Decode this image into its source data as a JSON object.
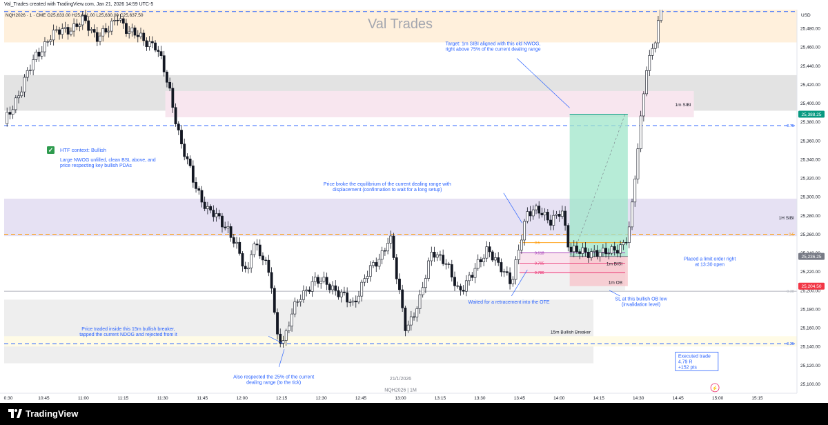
{
  "header": {
    "credit": "Val_Trades created with TradingView.com, Jan 21, 2026 14:59 UTC-5"
  },
  "watermark": "Val Trades",
  "footer": {
    "brand": "TradingView"
  },
  "chart_data": {
    "type": "candlestick",
    "symbol_line": "NQH2026 · 1 · CME O25,633.00 H25,641.00 L25,630.00 C25,637.50",
    "symbol_footer": "NQH2026 | 1M",
    "date_label": "21/1/2026",
    "currency": "USD",
    "y_range": [
      25090,
      25500
    ],
    "x_range": [
      "10:30",
      "15:30"
    ],
    "y_ticks": [
      "25,480.00",
      "25,460.00",
      "25,440.00",
      "25,420.00",
      "25,400.00",
      "25,380.00",
      "25,360.00",
      "25,340.00",
      "25,320.00",
      "25,300.00",
      "25,280.00",
      "25,260.00",
      "25,240.00",
      "25,220.00",
      "25,200.00",
      "25,180.00",
      "25,160.00",
      "25,140.00",
      "25,120.00",
      "25,100.00"
    ],
    "y_tick_values": [
      25480,
      25460,
      25440,
      25420,
      25400,
      25380,
      25360,
      25340,
      25320,
      25300,
      25280,
      25260,
      25240,
      25220,
      25200,
      25180,
      25160,
      25140,
      25120,
      25100
    ],
    "x_ticks": [
      {
        "label": "0:30",
        "time": "10:30"
      },
      {
        "label": "10:45",
        "time": "10:45"
      },
      {
        "label": "11:00",
        "time": "11:00"
      },
      {
        "label": "11:15",
        "time": "11:15"
      },
      {
        "label": "11:30",
        "time": "11:30"
      },
      {
        "label": "11:45",
        "time": "11:45"
      },
      {
        "label": "12:00",
        "time": "12:00"
      },
      {
        "label": "12:15",
        "time": "12:15"
      },
      {
        "label": "12:30",
        "time": "12:30"
      },
      {
        "label": "12:45",
        "time": "12:45"
      },
      {
        "label": "13:00",
        "time": "13:00"
      },
      {
        "label": "13:15",
        "time": "13:15"
      },
      {
        "label": "13:30",
        "time": "13:30"
      },
      {
        "label": "13:45",
        "time": "13:45"
      },
      {
        "label": "14:00",
        "time": "14:00"
      },
      {
        "label": "14:15",
        "time": "14:15"
      },
      {
        "label": "14:30",
        "time": "14:30"
      },
      {
        "label": "14:45",
        "time": "14:45"
      },
      {
        "label": "15:00",
        "time": "15:00"
      },
      {
        "label": "15:15",
        "time": "15:15"
      }
    ],
    "price_badges": [
      {
        "label": "25,388.25",
        "price": 25388.25,
        "color": "#089981"
      },
      {
        "label": "25,236.25",
        "price": 25236.25,
        "color": "#787b86"
      },
      {
        "label": "25,204.50",
        "price": 25204.5,
        "color": "#f23645"
      }
    ],
    "price_path": [
      [
        "10:30",
        25378
      ],
      [
        "10:33",
        25395
      ],
      [
        "10:37",
        25420
      ],
      [
        "10:42",
        25450
      ],
      [
        "10:47",
        25470
      ],
      [
        "10:52",
        25478
      ],
      [
        "10:57",
        25482
      ],
      [
        "11:00",
        25488
      ],
      [
        "11:05",
        25472
      ],
      [
        "11:10",
        25478
      ],
      [
        "11:13",
        25495
      ],
      [
        "11:17",
        25476
      ],
      [
        "11:22",
        25470
      ],
      [
        "11:27",
        25462
      ],
      [
        "11:30",
        25440
      ],
      [
        "11:33",
        25410
      ],
      [
        "11:37",
        25355
      ],
      [
        "11:42",
        25315
      ],
      [
        "11:47",
        25285
      ],
      [
        "11:52",
        25275
      ],
      [
        "11:55",
        25265
      ],
      [
        "11:58",
        25245
      ],
      [
        "12:02",
        25215
      ],
      [
        "12:04",
        25255
      ],
      [
        "12:08",
        25232
      ],
      [
        "12:11",
        25212
      ],
      [
        "12:13",
        25155
      ],
      [
        "12:16",
        25145
      ],
      [
        "12:19",
        25175
      ],
      [
        "12:22",
        25195
      ],
      [
        "12:27",
        25208
      ],
      [
        "12:32",
        25210
      ],
      [
        "12:37",
        25195
      ],
      [
        "12:42",
        25186
      ],
      [
        "12:47",
        25215
      ],
      [
        "12:52",
        25235
      ],
      [
        "12:56",
        25258
      ],
      [
        "12:59",
        25205
      ],
      [
        "13:02",
        25160
      ],
      [
        "13:07",
        25185
      ],
      [
        "13:12",
        25245
      ],
      [
        "13:17",
        25228
      ],
      [
        "13:22",
        25200
      ],
      [
        "13:27",
        25215
      ],
      [
        "13:33",
        25247
      ],
      [
        "13:37",
        25225
      ],
      [
        "13:42",
        25210
      ],
      [
        "13:45",
        25248
      ],
      [
        "13:48",
        25280
      ],
      [
        "13:52",
        25290
      ],
      [
        "13:57",
        25270
      ],
      [
        "14:01",
        25288
      ],
      [
        "14:04",
        25243
      ],
      [
        "14:08",
        25240
      ],
      [
        "14:13",
        25242
      ],
      [
        "14:17",
        25238
      ],
      [
        "14:21",
        25245
      ],
      [
        "14:25",
        25250
      ],
      [
        "14:27",
        25270
      ],
      [
        "14:30",
        25360
      ],
      [
        "14:33",
        25440
      ],
      [
        "14:36",
        25460
      ],
      [
        "14:39",
        25510
      ]
    ],
    "zones": [
      {
        "label": "",
        "ymin": 25465,
        "ymax": 25500,
        "tmin": "10:30",
        "tmax": "15:30",
        "color": "#fff0dc"
      },
      {
        "label": "",
        "ymin": 25392,
        "ymax": 25430,
        "tmin": "10:30",
        "tmax": "15:30",
        "color": "#e3e3e3"
      },
      {
        "label": "1m SIBI",
        "ymin": 25385,
        "ymax": 25413,
        "tmin": "11:31",
        "tmax": "14:51",
        "color": "#f8e6ef"
      },
      {
        "label": "1H SIBI",
        "ymin": 25258,
        "ymax": 25298,
        "tmin": "10:30",
        "tmax": "15:30",
        "color": "#e6e1f3"
      },
      {
        "label": "1m BISI",
        "ymin": 25218,
        "ymax": 25240,
        "tmin": "13:45",
        "tmax": "14:25",
        "color": "#f9e4ee"
      },
      {
        "label": "1m OB",
        "ymin": 25200,
        "ymax": 25218,
        "tmin": "13:45",
        "tmax": "14:25",
        "color": "#f1f1f1"
      },
      {
        "label": "15m Bullish Breaker",
        "ymin": 25122,
        "ymax": 25190,
        "tmin": "10:30",
        "tmax": "14:13",
        "color": "#eeeeee"
      },
      {
        "label": "",
        "ymin": 25140,
        "ymax": 25151,
        "tmin": "10:30",
        "tmax": "15:30",
        "color": "#fffbe6"
      }
    ],
    "lines": [
      {
        "label": "0.75",
        "y": 25376,
        "color": "#2962ff",
        "dash": "6 4"
      },
      {
        "label": "0.5",
        "y": 25260,
        "color": "#ff9800",
        "dash": "6 4"
      },
      {
        "label": "0.25",
        "y": 25143,
        "color": "#2962ff",
        "dash": "6 4"
      },
      {
        "label": "",
        "y": 25498,
        "color": "#2962ff",
        "dash": "6 4"
      },
      {
        "label": "0.38",
        "y": 25199,
        "color": "#b2b5be",
        "dash": "1 0"
      }
    ],
    "fib_levels": [
      {
        "label": "0.5",
        "y": 25251,
        "color": "#ff9800"
      },
      {
        "label": "0.618",
        "y": 25240,
        "color": "#9c27b0"
      },
      {
        "label": "0.705",
        "y": 25229,
        "color": "#e91e63"
      },
      {
        "label": "0.786",
        "y": 25219,
        "color": "#e91e63"
      }
    ],
    "position": {
      "entry": 25236.25,
      "target": 25388.25,
      "stop": 25204.5,
      "tmin": "14:04",
      "tmax": "14:26"
    },
    "legend": {
      "check": "✓",
      "title": "HTF context: Bullish",
      "body": [
        "Large NWOG unfilled, clean BSL above, and",
        "price respecting key bullish PDAs"
      ]
    },
    "annotations": [
      {
        "lines": [
          "Target: 1m SIBI aligned with this old NWOG,",
          "right above 75% of the current dealing range"
        ],
        "t": "13:35",
        "y": 25462
      },
      {
        "lines": [
          "Price broke the equilibrium of the current dealing range with",
          "displacement (confirmation to wait for a long setup)"
        ],
        "t": "12:55",
        "y": 25312
      },
      {
        "lines": [
          "Price traded inside this 15m bullish breaker,",
          "tapped the current NDOG and rejected from it"
        ],
        "t": "11:17",
        "y": 25157
      },
      {
        "lines": [
          "Also respected the 25% of the current",
          "dealing range (to the tick)"
        ],
        "t": "12:12",
        "y": 25106
      },
      {
        "lines": [
          "Waited for a retracement into the OTE"
        ],
        "t": "13:41",
        "y": 25186
      },
      {
        "lines": [
          "SL at this bullish OB low",
          "(invalidation level)"
        ],
        "t": "14:31",
        "y": 25189
      },
      {
        "lines": [
          "Placed a limit order right",
          "at 13:30 open"
        ],
        "t": "14:57",
        "y": 25232
      }
    ],
    "executed": {
      "lines": [
        "Executed trade",
        "4.79 R",
        "+152 pts"
      ]
    }
  }
}
